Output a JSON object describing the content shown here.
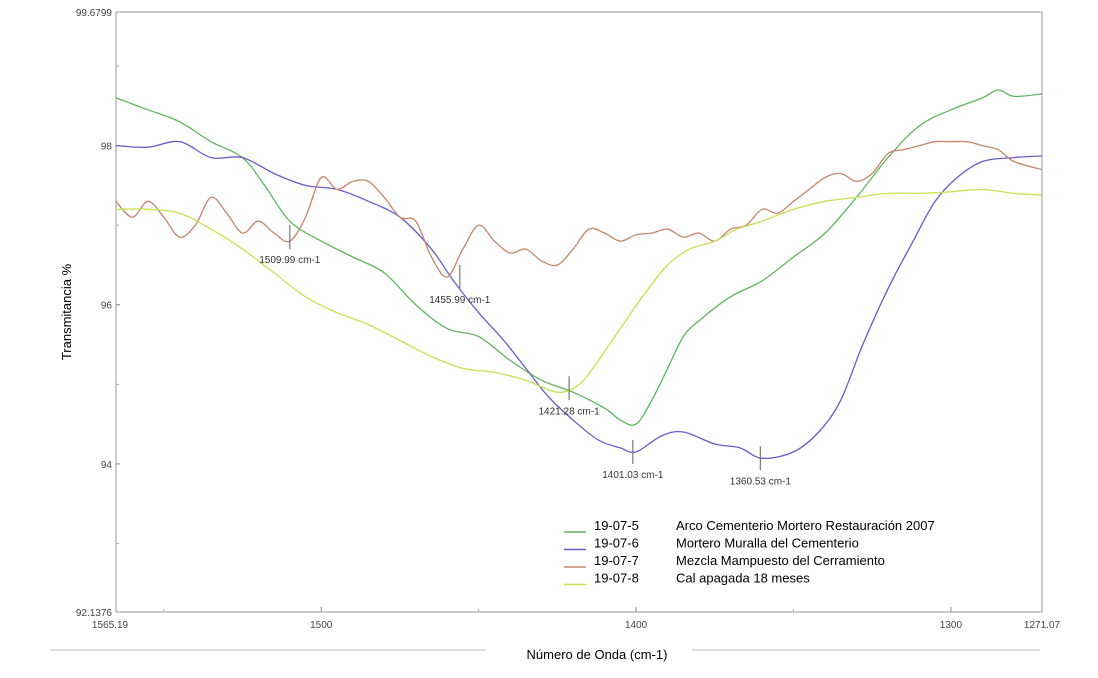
{
  "chart_data": {
    "type": "line",
    "title": "",
    "xlabel": "Número de Onda (cm-1)",
    "ylabel": "Transmitancia %",
    "xlim": [
      1565.19,
      1271.07
    ],
    "ylim": [
      92.1376,
      99.6799
    ],
    "x_tick_labels": [
      "1565.19",
      "1500",
      "1400",
      "1300",
      "1271.07"
    ],
    "y_tick_labels": [
      "92.1376",
      "94",
      "96",
      "98",
      "99.6799"
    ],
    "legend_position": "bottom-right",
    "series": [
      {
        "name": "19-07-5",
        "description": "Arco Cementerio Mortero Restauración 2007",
        "color": "#5cb85c",
        "points": [
          [
            1565.19,
            98.6
          ],
          [
            1555,
            98.45
          ],
          [
            1545,
            98.3
          ],
          [
            1535,
            98.05
          ],
          [
            1525,
            97.85
          ],
          [
            1518,
            97.5
          ],
          [
            1510,
            97.05
          ],
          [
            1500,
            96.8
          ],
          [
            1490,
            96.6
          ],
          [
            1480,
            96.4
          ],
          [
            1470,
            96.0
          ],
          [
            1460,
            95.7
          ],
          [
            1450,
            95.6
          ],
          [
            1440,
            95.3
          ],
          [
            1430,
            95.05
          ],
          [
            1420,
            94.9
          ],
          [
            1410,
            94.7
          ],
          [
            1405,
            94.55
          ],
          [
            1400,
            94.5
          ],
          [
            1395,
            94.8
          ],
          [
            1390,
            95.2
          ],
          [
            1385,
            95.6
          ],
          [
            1380,
            95.8
          ],
          [
            1370,
            96.1
          ],
          [
            1360,
            96.3
          ],
          [
            1350,
            96.6
          ],
          [
            1340,
            96.9
          ],
          [
            1330,
            97.35
          ],
          [
            1320,
            97.85
          ],
          [
            1310,
            98.25
          ],
          [
            1300,
            98.45
          ],
          [
            1290,
            98.6
          ],
          [
            1285,
            98.7
          ],
          [
            1280,
            98.62
          ],
          [
            1271.07,
            98.65
          ]
        ]
      },
      {
        "name": "19-07-6",
        "description": "Mortero Muralla del Cementerio",
        "color": "#6a5acd",
        "points": [
          [
            1565.19,
            98.0
          ],
          [
            1555,
            97.98
          ],
          [
            1545,
            98.05
          ],
          [
            1535,
            97.85
          ],
          [
            1525,
            97.85
          ],
          [
            1515,
            97.65
          ],
          [
            1505,
            97.5
          ],
          [
            1495,
            97.45
          ],
          [
            1485,
            97.3
          ],
          [
            1475,
            97.1
          ],
          [
            1465,
            96.7
          ],
          [
            1458,
            96.3
          ],
          [
            1450,
            95.9
          ],
          [
            1442,
            95.55
          ],
          [
            1435,
            95.2
          ],
          [
            1428,
            94.85
          ],
          [
            1420,
            94.55
          ],
          [
            1412,
            94.3
          ],
          [
            1405,
            94.2
          ],
          [
            1400,
            94.15
          ],
          [
            1392,
            94.35
          ],
          [
            1385,
            94.4
          ],
          [
            1375,
            94.25
          ],
          [
            1367,
            94.2
          ],
          [
            1360,
            94.07
          ],
          [
            1350,
            94.15
          ],
          [
            1342,
            94.4
          ],
          [
            1335,
            94.8
          ],
          [
            1328,
            95.5
          ],
          [
            1320,
            96.2
          ],
          [
            1312,
            96.8
          ],
          [
            1305,
            97.3
          ],
          [
            1298,
            97.6
          ],
          [
            1290,
            97.8
          ],
          [
            1280,
            97.85
          ],
          [
            1271.07,
            97.87
          ]
        ]
      },
      {
        "name": "19-07-7",
        "description": "Mezcla Mampuesto del Cerramiento",
        "color": "#c9856a",
        "points": [
          [
            1565.19,
            97.3
          ],
          [
            1560,
            97.1
          ],
          [
            1555,
            97.3
          ],
          [
            1550,
            97.1
          ],
          [
            1545,
            96.85
          ],
          [
            1540,
            97.0
          ],
          [
            1535,
            97.35
          ],
          [
            1530,
            97.15
          ],
          [
            1525,
            96.9
          ],
          [
            1520,
            97.05
          ],
          [
            1515,
            96.9
          ],
          [
            1510,
            96.8
          ],
          [
            1505,
            97.1
          ],
          [
            1500,
            97.6
          ],
          [
            1495,
            97.45
          ],
          [
            1490,
            97.55
          ],
          [
            1485,
            97.55
          ],
          [
            1480,
            97.35
          ],
          [
            1475,
            97.1
          ],
          [
            1470,
            97.05
          ],
          [
            1465,
            96.6
          ],
          [
            1460,
            96.35
          ],
          [
            1455,
            96.7
          ],
          [
            1450,
            97.0
          ],
          [
            1445,
            96.8
          ],
          [
            1440,
            96.65
          ],
          [
            1435,
            96.7
          ],
          [
            1430,
            96.55
          ],
          [
            1425,
            96.5
          ],
          [
            1420,
            96.7
          ],
          [
            1415,
            96.95
          ],
          [
            1410,
            96.9
          ],
          [
            1405,
            96.8
          ],
          [
            1400,
            96.88
          ],
          [
            1395,
            96.9
          ],
          [
            1390,
            96.95
          ],
          [
            1385,
            96.85
          ],
          [
            1380,
            96.9
          ],
          [
            1375,
            96.8
          ],
          [
            1370,
            96.95
          ],
          [
            1365,
            97.0
          ],
          [
            1360,
            97.2
          ],
          [
            1355,
            97.15
          ],
          [
            1350,
            97.3
          ],
          [
            1345,
            97.45
          ],
          [
            1340,
            97.6
          ],
          [
            1335,
            97.65
          ],
          [
            1330,
            97.55
          ],
          [
            1325,
            97.65
          ],
          [
            1320,
            97.9
          ],
          [
            1315,
            97.95
          ],
          [
            1310,
            98.0
          ],
          [
            1305,
            98.05
          ],
          [
            1300,
            98.05
          ],
          [
            1295,
            98.05
          ],
          [
            1290,
            98.0
          ],
          [
            1285,
            97.95
          ],
          [
            1280,
            97.8
          ],
          [
            1271.07,
            97.7
          ]
        ]
      },
      {
        "name": "19-07-8",
        "description": "Cal apagada 18 meses",
        "color": "#c8df52",
        "points": [
          [
            1565.19,
            97.2
          ],
          [
            1555,
            97.2
          ],
          [
            1545,
            97.15
          ],
          [
            1535,
            96.95
          ],
          [
            1525,
            96.7
          ],
          [
            1515,
            96.4
          ],
          [
            1505,
            96.1
          ],
          [
            1495,
            95.9
          ],
          [
            1485,
            95.75
          ],
          [
            1475,
            95.55
          ],
          [
            1465,
            95.35
          ],
          [
            1455,
            95.2
          ],
          [
            1445,
            95.15
          ],
          [
            1435,
            95.05
          ],
          [
            1425,
            94.9
          ],
          [
            1418,
            95.0
          ],
          [
            1412,
            95.3
          ],
          [
            1405,
            95.7
          ],
          [
            1398,
            96.1
          ],
          [
            1390,
            96.5
          ],
          [
            1383,
            96.7
          ],
          [
            1375,
            96.8
          ],
          [
            1368,
            96.95
          ],
          [
            1360,
            97.05
          ],
          [
            1350,
            97.2
          ],
          [
            1340,
            97.3
          ],
          [
            1330,
            97.35
          ],
          [
            1320,
            97.4
          ],
          [
            1310,
            97.4
          ],
          [
            1300,
            97.42
          ],
          [
            1290,
            97.45
          ],
          [
            1280,
            97.4
          ],
          [
            1271.07,
            97.38
          ]
        ]
      }
    ],
    "annotations": [
      {
        "label": "1509.99 cm-1",
        "x": 1509.99,
        "y": 96.85
      },
      {
        "label": "1455.99 cm-1",
        "x": 1455.99,
        "y": 96.35
      },
      {
        "label": "1421.28 cm-1",
        "x": 1421.28,
        "y": 94.95
      },
      {
        "label": "1401.03 cm-1",
        "x": 1401.03,
        "y": 94.15
      },
      {
        "label": "1360.53 cm-1",
        "x": 1360.53,
        "y": 94.07
      }
    ]
  }
}
